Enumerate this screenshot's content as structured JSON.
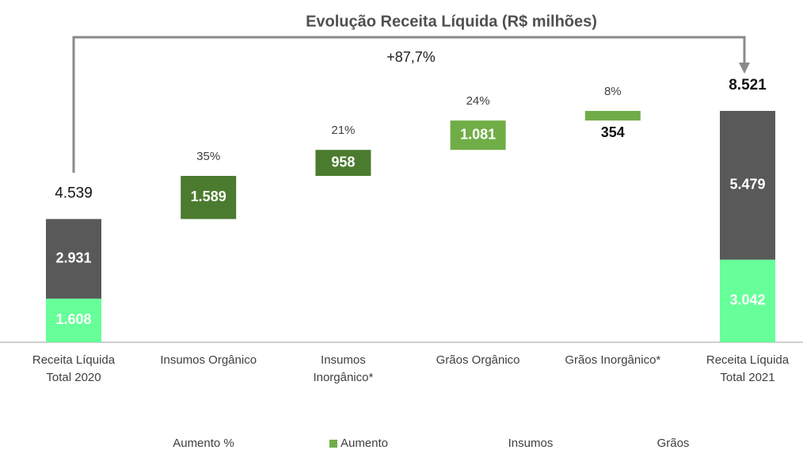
{
  "chart_data": {
    "type": "waterfall",
    "title": "Evolução  Receita Líquida (R$ milhões)",
    "annotation": "+87,7%",
    "categories": [
      "Receita Líquida\nTotal 2020",
      "Insumos Orgânico",
      "Insumos\nInorgânico*",
      "Grãos Orgânico",
      "Grãos Inorgânico*",
      "Receita Líquida\nTotal 2021"
    ],
    "total_values": [
      4539,
      null,
      null,
      null,
      null,
      8521
    ],
    "total_labels": [
      "4.539",
      null,
      null,
      null,
      null,
      "8.521"
    ],
    "series": [
      {
        "name": "Aumento %",
        "role": "percent",
        "legend_marker": false,
        "values": [
          null,
          35,
          21,
          24,
          8,
          null
        ],
        "value_labels": [
          null,
          "35%",
          "21%",
          "24%",
          "8%",
          null
        ]
      },
      {
        "name": "Aumento",
        "role": "increment",
        "color": "#70ad47",
        "colors": [
          null,
          "#4b7b2f",
          "#4b7b2f",
          "#70ad47",
          "#70ad47",
          null
        ],
        "values": [
          null,
          1589,
          958,
          1081,
          354,
          null
        ],
        "value_labels": [
          null,
          "1.589",
          "958",
          "1.081",
          "354",
          null
        ]
      },
      {
        "name": "Insumos",
        "role": "stack",
        "color": "#595959",
        "legend_marker": false,
        "values": [
          2931,
          null,
          null,
          null,
          null,
          5479
        ],
        "value_labels": [
          "2.931",
          null,
          null,
          null,
          null,
          "5.479"
        ]
      },
      {
        "name": "Grãos",
        "role": "stack",
        "color": "#66ff99",
        "legend_marker": false,
        "values": [
          1608,
          null,
          null,
          null,
          null,
          3042
        ],
        "value_labels": [
          "1.608",
          null,
          null,
          null,
          null,
          "3.042"
        ]
      }
    ]
  }
}
